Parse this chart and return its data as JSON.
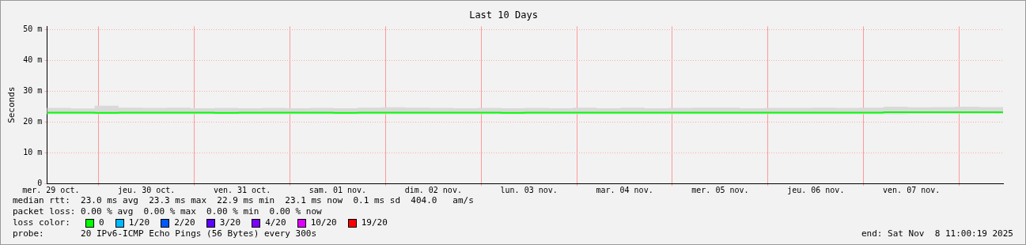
{
  "chart_data": {
    "type": "line",
    "title": "Last 10 Days",
    "ylabel": "Seconds",
    "x": [
      "2025-10-29T11:00",
      "2025-10-29T17:00",
      "2025-10-29T23:00",
      "2025-10-30T05:00",
      "2025-10-30T11:00",
      "2025-10-30T17:00",
      "2025-10-30T23:00",
      "2025-10-31T05:00",
      "2025-10-31T11:00",
      "2025-10-31T17:00",
      "2025-10-31T23:00",
      "2025-11-01T05:00",
      "2025-11-01T11:00",
      "2025-11-01T17:00",
      "2025-11-01T23:00",
      "2025-11-02T05:00",
      "2025-11-02T11:00",
      "2025-11-02T17:00",
      "2025-11-02T23:00",
      "2025-11-03T05:00",
      "2025-11-03T11:00",
      "2025-11-03T17:00",
      "2025-11-03T23:00",
      "2025-11-04T05:00",
      "2025-11-04T11:00",
      "2025-11-04T17:00",
      "2025-11-04T23:00",
      "2025-11-05T05:00",
      "2025-11-05T11:00",
      "2025-11-05T17:00",
      "2025-11-05T23:00",
      "2025-11-06T05:00",
      "2025-11-06T11:00",
      "2025-11-06T17:00",
      "2025-11-06T23:00",
      "2025-11-07T05:00",
      "2025-11-07T11:00",
      "2025-11-07T17:00",
      "2025-11-07T23:00",
      "2025-11-08T05:00",
      "2025-11-08T11:00"
    ],
    "series": [
      {
        "name": "0",
        "color": "#00ff00",
        "values": [
          23.0,
          23.0,
          22.9,
          23.0,
          23.0,
          23.0,
          23.0,
          22.9,
          23.0,
          23.0,
          23.0,
          23.0,
          22.9,
          23.0,
          23.0,
          23.0,
          23.0,
          23.0,
          23.0,
          22.9,
          23.0,
          23.0,
          23.0,
          23.0,
          23.0,
          23.0,
          23.0,
          23.0,
          23.0,
          23.0,
          23.0,
          23.0,
          23.0,
          23.0,
          23.0,
          23.1,
          23.1,
          23.1,
          23.1,
          23.1,
          23.1
        ],
        "lower": [
          22.5,
          22.5,
          22.5,
          22.5,
          22.5,
          22.5,
          22.5,
          22.5,
          22.5,
          22.5,
          22.5,
          22.5,
          22.5,
          22.5,
          22.5,
          22.5,
          22.5,
          22.5,
          22.5,
          22.5,
          22.5,
          22.5,
          22.5,
          22.5,
          22.5,
          22.5,
          22.5,
          22.5,
          22.5,
          22.5,
          22.5,
          22.5,
          22.5,
          22.5,
          22.5,
          22.5,
          22.6,
          22.6,
          22.6,
          22.6,
          22.6
        ],
        "upper": [
          24.5,
          24.3,
          25.2,
          24.6,
          24.5,
          24.6,
          24.4,
          24.5,
          24.4,
          24.5,
          24.4,
          24.5,
          24.4,
          24.6,
          24.7,
          24.6,
          24.5,
          24.4,
          24.5,
          24.4,
          24.5,
          24.4,
          24.6,
          24.4,
          24.6,
          24.4,
          24.5,
          24.6,
          24.6,
          24.4,
          24.5,
          24.5,
          24.6,
          24.5,
          24.6,
          24.9,
          24.7,
          24.8,
          24.9,
          24.8,
          24.6
        ]
      },
      {
        "name": "1/20",
        "color": "#00b8ff",
        "values": [
          null,
          null,
          null,
          null,
          null,
          null,
          null,
          null,
          null,
          null,
          null,
          null,
          null,
          null,
          null,
          null,
          null,
          null,
          null,
          null,
          null,
          null,
          null,
          null,
          null,
          null,
          null,
          null,
          null,
          null,
          null,
          null,
          null,
          null,
          null,
          null,
          null,
          null,
          null,
          null,
          null
        ]
      },
      {
        "name": "2/20",
        "color": "#0059ff",
        "values": [
          null,
          null,
          null,
          null,
          null,
          null,
          null,
          null,
          null,
          null,
          null,
          null,
          null,
          null,
          null,
          null,
          null,
          null,
          null,
          null,
          null,
          null,
          null,
          null,
          null,
          null,
          null,
          null,
          null,
          null,
          null,
          null,
          null,
          null,
          null,
          null,
          null,
          null,
          null,
          null,
          null
        ]
      },
      {
        "name": "3/20",
        "color": "#5e00ff",
        "values": [
          null,
          null,
          null,
          null,
          null,
          null,
          null,
          null,
          null,
          null,
          null,
          null,
          null,
          null,
          null,
          null,
          null,
          null,
          null,
          null,
          null,
          null,
          null,
          null,
          null,
          null,
          null,
          null,
          null,
          null,
          null,
          null,
          null,
          null,
          null,
          null,
          null,
          null,
          null,
          null,
          null
        ]
      },
      {
        "name": "4/20",
        "color": "#7e00ff",
        "values": [
          null,
          null,
          null,
          null,
          null,
          null,
          null,
          null,
          null,
          null,
          null,
          null,
          null,
          null,
          null,
          null,
          null,
          null,
          null,
          null,
          null,
          null,
          null,
          null,
          null,
          null,
          null,
          null,
          null,
          null,
          null,
          null,
          null,
          null,
          null,
          null,
          null,
          null,
          null,
          null,
          null
        ]
      },
      {
        "name": "10/20",
        "color": "#dd00ff",
        "values": [
          null,
          null,
          null,
          null,
          null,
          null,
          null,
          null,
          null,
          null,
          null,
          null,
          null,
          null,
          null,
          null,
          null,
          null,
          null,
          null,
          null,
          null,
          null,
          null,
          null,
          null,
          null,
          null,
          null,
          null,
          null,
          null,
          null,
          null,
          null,
          null,
          null,
          null,
          null,
          null,
          null
        ]
      },
      {
        "name": "19/20",
        "color": "#ff0000",
        "values": [
          null,
          null,
          null,
          null,
          null,
          null,
          null,
          null,
          null,
          null,
          null,
          null,
          null,
          null,
          null,
          null,
          null,
          null,
          null,
          null,
          null,
          null,
          null,
          null,
          null,
          null,
          null,
          null,
          null,
          null,
          null,
          null,
          null,
          null,
          null,
          null,
          null,
          null,
          null,
          null,
          null
        ]
      }
    ],
    "legend": "bottom",
    "legend_title": "loss color:",
    "xlim": [
      "2025-10-29T11:00",
      "2025-11-08T11:00"
    ],
    "xticks": [
      {
        "value": "2025-10-29T12:00",
        "label": "mer. 29 oct."
      },
      {
        "value": "2025-10-30T00:00",
        "label": null
      },
      {
        "value": "2025-10-30T12:00",
        "label": "jeu. 30 oct."
      },
      {
        "value": "2025-10-31T00:00",
        "label": null
      },
      {
        "value": "2025-10-31T12:00",
        "label": "ven. 31 oct."
      },
      {
        "value": "2025-11-01T00:00",
        "label": null
      },
      {
        "value": "2025-11-01T12:00",
        "label": "sam. 01 nov."
      },
      {
        "value": "2025-11-02T00:00",
        "label": null
      },
      {
        "value": "2025-11-02T12:00",
        "label": "dim. 02 nov."
      },
      {
        "value": "2025-11-03T00:00",
        "label": null
      },
      {
        "value": "2025-11-03T12:00",
        "label": "lun. 03 nov."
      },
      {
        "value": "2025-11-04T00:00",
        "label": null
      },
      {
        "value": "2025-11-04T12:00",
        "label": "mar. 04 nov."
      },
      {
        "value": "2025-11-05T00:00",
        "label": null
      },
      {
        "value": "2025-11-05T12:00",
        "label": "mer. 05 nov."
      },
      {
        "value": "2025-11-06T00:00",
        "label": null
      },
      {
        "value": "2025-11-06T12:00",
        "label": "jeu. 06 nov."
      },
      {
        "value": "2025-11-07T00:00",
        "label": null
      },
      {
        "value": "2025-11-07T12:00",
        "label": "ven. 07 nov."
      },
      {
        "value": "2025-11-08T00:00",
        "label": null
      }
    ],
    "ylim": [
      0,
      51
    ],
    "yticks": [
      0,
      {
        "value": 10,
        "label": "10 m"
      },
      {
        "value": 20,
        "label": "20 m"
      },
      {
        "value": 30,
        "label": "30 m"
      },
      {
        "value": 40,
        "label": "40 m"
      },
      {
        "value": 50,
        "label": "50 m"
      }
    ],
    "grid": true,
    "annotations": [
      "median rtt:  23.0 ms avg  23.3 ms max  22.9 ms min  23.1 ms now  0.1 ms sd  404.0   am/s",
      "packet loss: 0.00 % avg  0.00 % max  0.00 % min  0.00 % now",
      "probe:       20 IPv6-ICMP Echo Pings (56 Bytes) every 300s",
      "end: Sat Nov  8 11:00:19 2025"
    ]
  }
}
